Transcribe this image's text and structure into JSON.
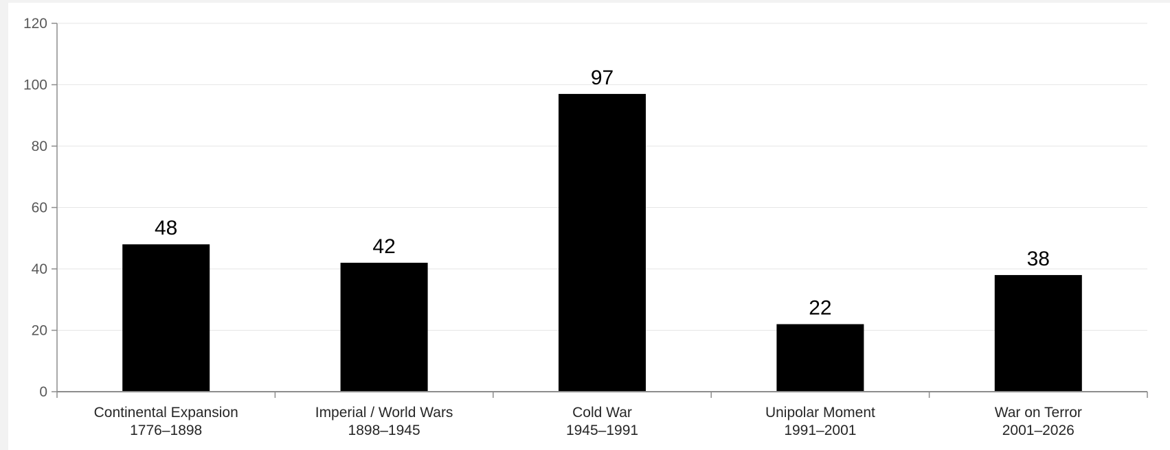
{
  "chart_data": {
    "type": "bar",
    "categories": [
      [
        "Continental Expansion",
        "1776–1898"
      ],
      [
        "Imperial / World Wars",
        "1898–1945"
      ],
      [
        "Cold War",
        "1945–1991"
      ],
      [
        "Unipolar Moment",
        "1991–2001"
      ],
      [
        "War on Terror",
        "2001–2026"
      ]
    ],
    "values": [
      48,
      42,
      97,
      22,
      38
    ],
    "data_labels": [
      "48",
      "42",
      "97",
      "22",
      "38"
    ],
    "y_ticks": [
      "0",
      "20",
      "40",
      "60",
      "80",
      "100",
      "120"
    ],
    "ylim": [
      0,
      120
    ],
    "y_tick_values": [
      0,
      20,
      40,
      60,
      80,
      100,
      120
    ],
    "grid": true,
    "legend": "none",
    "title": "",
    "xlabel": "",
    "ylabel": "",
    "colors": {
      "bar": "#000000",
      "grid": "#e6e6e6",
      "axis": "#8c8c8c"
    }
  }
}
